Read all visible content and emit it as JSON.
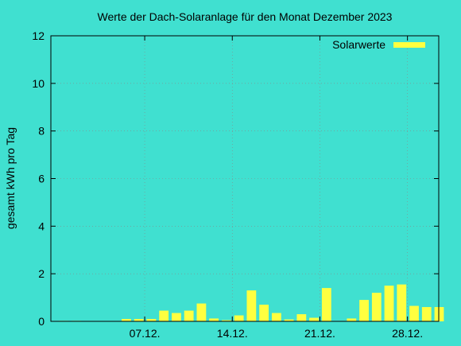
{
  "chart_data": {
    "type": "bar",
    "title": "Werte der Dach-Solaranlage für den Monat Dezember 2023",
    "xlabel": "",
    "ylabel": "gesamt kWh pro Tag",
    "x": [
      1,
      2,
      3,
      4,
      5,
      6,
      7,
      8,
      9,
      10,
      11,
      12,
      13,
      14,
      15,
      16,
      17,
      18,
      19,
      20,
      21,
      22,
      23,
      24,
      25,
      26,
      27,
      28,
      29,
      30,
      31
    ],
    "series": [
      {
        "name": "Solarwerte",
        "color": "#ffff40",
        "values": [
          0.02,
          0.02,
          0.0,
          0.0,
          0.0,
          0.1,
          0.1,
          0.1,
          0.45,
          0.35,
          0.45,
          0.75,
          0.12,
          0.05,
          0.25,
          1.3,
          0.7,
          0.35,
          0.08,
          0.3,
          0.15,
          1.4,
          0.0,
          0.12,
          0.9,
          1.2,
          1.5,
          1.55,
          0.65,
          0.6,
          0.6
        ]
      }
    ],
    "xticks": [
      {
        "value": 7,
        "label": "07.12."
      },
      {
        "value": 14,
        "label": "14.12."
      },
      {
        "value": 21,
        "label": "21.12."
      },
      {
        "value": 28,
        "label": "28.12."
      }
    ],
    "yticks": [
      0,
      2,
      4,
      6,
      8,
      10,
      12
    ],
    "xlim": [
      0,
      31
    ],
    "ylim": [
      0,
      12
    ],
    "grid": true,
    "legend_position": "top-right"
  }
}
